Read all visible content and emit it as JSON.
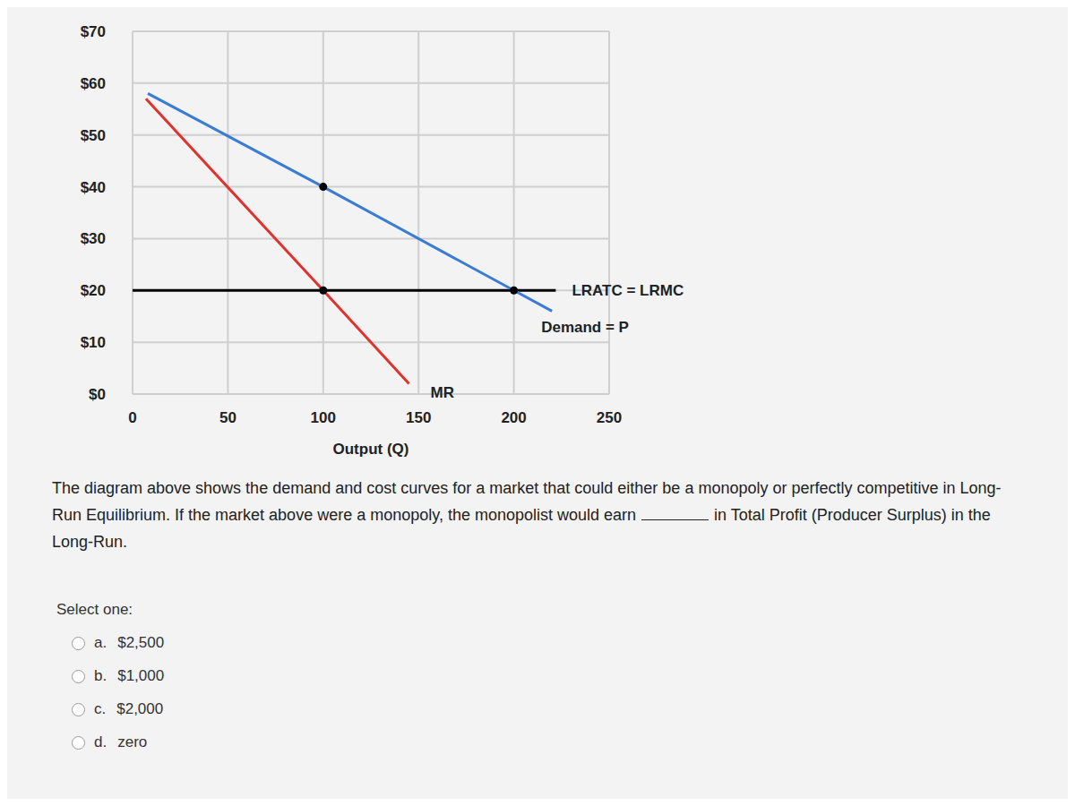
{
  "chart_data": {
    "type": "line",
    "xlabel": "Output (Q)",
    "xlim": [
      0,
      250
    ],
    "xticks": [
      0,
      50,
      100,
      150,
      200,
      250
    ],
    "ylim": [
      0,
      70
    ],
    "yticks": [
      {
        "value": 0,
        "label": "$0"
      },
      {
        "value": 10,
        "label": "$10"
      },
      {
        "value": 20,
        "label": "$20"
      },
      {
        "value": 30,
        "label": "$30"
      },
      {
        "value": 40,
        "label": "$40"
      },
      {
        "value": 50,
        "label": "$50"
      },
      {
        "value": 60,
        "label": "$60"
      },
      {
        "value": 70,
        "label": "$70"
      }
    ],
    "grid": true,
    "series": [
      {
        "name": "LRATC = LRMC",
        "color": "#000000",
        "x": [
          0,
          222
        ],
        "values": [
          20,
          20
        ]
      },
      {
        "name": "Demand = P",
        "color": "#3a7bd5",
        "x": [
          8,
          100,
          200,
          220
        ],
        "values": [
          58,
          40,
          20,
          16
        ]
      },
      {
        "name": "MR",
        "color": "#e0322e",
        "x": [
          7,
          100,
          145
        ],
        "values": [
          57,
          20,
          2
        ]
      },
      {
        "type": "scatter",
        "marker": "circle",
        "color": "#000000",
        "x": [
          100,
          100,
          200
        ],
        "values": [
          40,
          20,
          20
        ]
      }
    ]
  },
  "question_before": "The diagram above shows the demand and cost curves for a market that could either be a monopoly or perfectly competitive in Long-Run Equilibrium.  If the market above were a monopoly, the monopolist would earn",
  "question_after": "in Total Profit (Producer Surplus) in the Long-Run.",
  "prompt": "Select one:",
  "options": [
    {
      "letter": "a.",
      "text": "$2,500"
    },
    {
      "letter": "b.",
      "text": "$1,000"
    },
    {
      "letter": "c.",
      "text": "$2,000"
    },
    {
      "letter": "d.",
      "text": "zero"
    }
  ]
}
